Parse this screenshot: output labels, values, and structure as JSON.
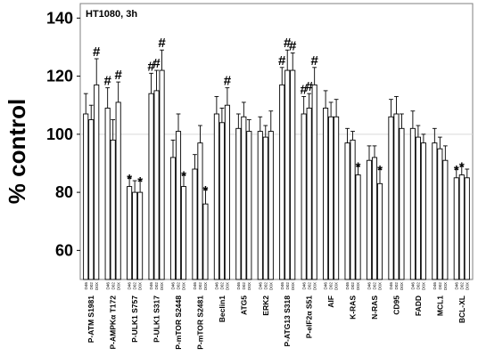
{
  "chart_data": {
    "type": "bar",
    "panel_label": "HT1080, 3h",
    "ylabel": "% control",
    "ylim": [
      50,
      145
    ],
    "yticks": [
      60,
      80,
      100,
      120,
      140
    ],
    "reference_line": 100,
    "grid": false,
    "bar_labels": [
      "D46",
      "D02",
      "D0X"
    ],
    "categories": [
      "P-ATM S1981",
      "P-AMPKα T172",
      "P-ULK1 S757",
      "P-ULK1 S317",
      "P-mTOR S2448",
      "P-mTOR S2481",
      "Beclin1",
      "ATG5",
      "ERK2",
      "P-ATG13 S318",
      "P-eIF2α S51",
      "AIF",
      "K-RAS",
      "N-RAS",
      "CD95",
      "FADD",
      "MCL1",
      "BCL-XL"
    ],
    "series": [
      {
        "values": [
          107,
          109,
          82,
          114,
          92,
          88,
          107,
          102,
          101,
          117,
          107,
          109,
          97,
          91,
          106,
          102,
          97,
          85
        ]
      },
      {
        "values": [
          105,
          98,
          80,
          115,
          101,
          97,
          104,
          106,
          99,
          122,
          109,
          106,
          98,
          92,
          107,
          99,
          95,
          86
        ]
      },
      {
        "values": [
          117,
          111,
          80,
          122,
          82,
          76,
          110,
          101,
          101,
          122,
          117,
          106,
          86,
          83,
          102,
          97,
          91,
          85
        ]
      }
    ],
    "error_plus": [
      [
        7,
        7,
        3,
        7,
        6,
        5,
        6,
        5,
        5,
        6,
        6,
        6,
        5,
        5,
        6,
        6,
        5,
        3
      ],
      [
        5,
        7,
        4,
        7,
        6,
        6,
        5,
        5,
        4,
        7,
        5,
        5,
        3,
        4,
        6,
        4,
        4,
        3
      ],
      [
        9,
        7,
        4,
        7,
        4,
        5,
        6,
        4,
        7,
        6,
        6,
        6,
        3,
        5,
        5,
        3,
        5,
        3
      ]
    ],
    "annotations": [
      [
        null,
        null,
        "#"
      ],
      [
        "#",
        null,
        "#"
      ],
      [
        "*",
        null,
        "*"
      ],
      [
        "#",
        "#",
        "#"
      ],
      [
        null,
        null,
        "*"
      ],
      [
        null,
        null,
        "*"
      ],
      [
        null,
        null,
        "#"
      ],
      [
        null,
        null,
        null
      ],
      [
        null,
        null,
        null
      ],
      [
        "#",
        "#",
        "#"
      ],
      [
        "#",
        "#",
        "#"
      ],
      [
        null,
        null,
        null
      ],
      [
        null,
        null,
        "*"
      ],
      [
        null,
        null,
        "*"
      ],
      [
        null,
        null,
        null
      ],
      [
        null,
        null,
        null
      ],
      [
        null,
        null,
        null
      ],
      [
        "*",
        "*",
        null
      ]
    ]
  }
}
